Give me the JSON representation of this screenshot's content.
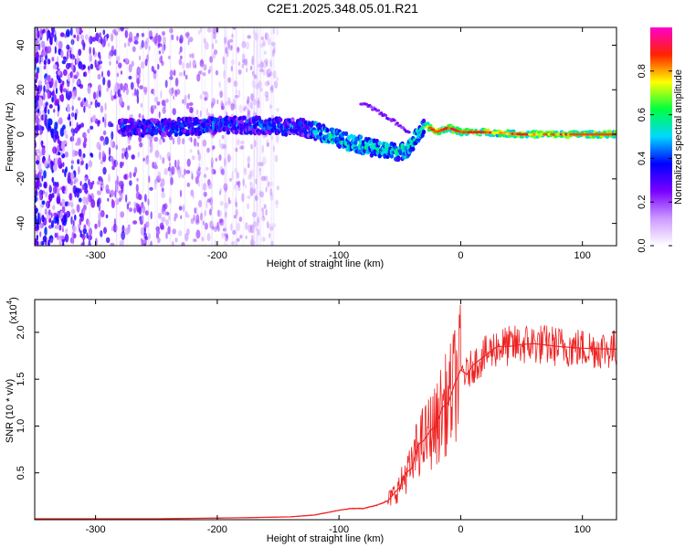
{
  "title": "C2E1.2025.348.05.01.R21",
  "chart_data": [
    {
      "type": "heatmap",
      "title": "C2E1.2025.348.05.01.R21",
      "xlabel": "Height of straight line (km)",
      "ylabel": "Frequency (Hz)",
      "xlim": [
        -350,
        128
      ],
      "ylim": [
        -50,
        48
      ],
      "xticks": [
        -300,
        -200,
        -100,
        0,
        100
      ],
      "yticks": [
        -40,
        -20,
        0,
        20,
        40
      ],
      "colorbar": {
        "label": "Normalized spectral amplitude",
        "range": [
          0,
          1
        ],
        "ticks": [
          0.0,
          0.2,
          0.4,
          0.6,
          0.8
        ],
        "colors": [
          "#ffffff",
          "#cc99ff",
          "#7a00ff",
          "#0000ff",
          "#00d8ff",
          "#00ff40",
          "#ffff00",
          "#ff2200",
          "#ff00cc"
        ]
      },
      "main_trace": {
        "x": [
          -280,
          -250,
          -200,
          -160,
          -130,
          -110,
          -95,
          -80,
          -65,
          -50,
          -42,
          -35,
          -28,
          -20,
          -10,
          0,
          20,
          50,
          100,
          128
        ],
        "y": [
          3,
          3,
          4,
          4,
          3,
          0,
          -3,
          -5,
          -7,
          -8,
          -6,
          0,
          4,
          1,
          3,
          1,
          1,
          0,
          0,
          0
        ]
      },
      "secondary_trace": {
        "x": [
          -82,
          -70,
          -58,
          -48,
          -42
        ],
        "y": [
          14,
          11,
          7,
          3,
          1
        ]
      },
      "noise_region_x": [
        -350,
        -150
      ]
    },
    {
      "type": "line",
      "title": "",
      "xlabel": "Height of straight line (km)",
      "ylabel": "SNR (10 * v/v)",
      "yscale_label": "(x10",
      "yscale_exp": "4",
      "yscale_close": ")",
      "xlim": [
        -350,
        128
      ],
      "ylim": [
        0,
        2.35
      ],
      "xticks": [
        -300,
        -200,
        -100,
        0,
        100
      ],
      "yticks": [
        0.5,
        1.0,
        1.5,
        2.0
      ],
      "series": [
        {
          "name": "SNR",
          "color": "#ee2222",
          "x": [
            -350,
            -250,
            -180,
            -140,
            -120,
            -100,
            -90,
            -80,
            -70,
            -60,
            -50,
            -45,
            -40,
            -35,
            -30,
            -25,
            -20,
            -15,
            -10,
            -5,
            0,
            5,
            10,
            20,
            30,
            40,
            50,
            60,
            80,
            100,
            128
          ],
          "values": [
            0.01,
            0.01,
            0.02,
            0.03,
            0.05,
            0.1,
            0.12,
            0.12,
            0.15,
            0.2,
            0.35,
            0.5,
            0.55,
            0.8,
            0.85,
            0.95,
            1.0,
            1.2,
            1.25,
            1.45,
            1.6,
            1.55,
            1.65,
            1.75,
            1.85,
            1.85,
            1.87,
            1.88,
            1.85,
            1.83,
            1.82
          ]
        }
      ]
    }
  ]
}
